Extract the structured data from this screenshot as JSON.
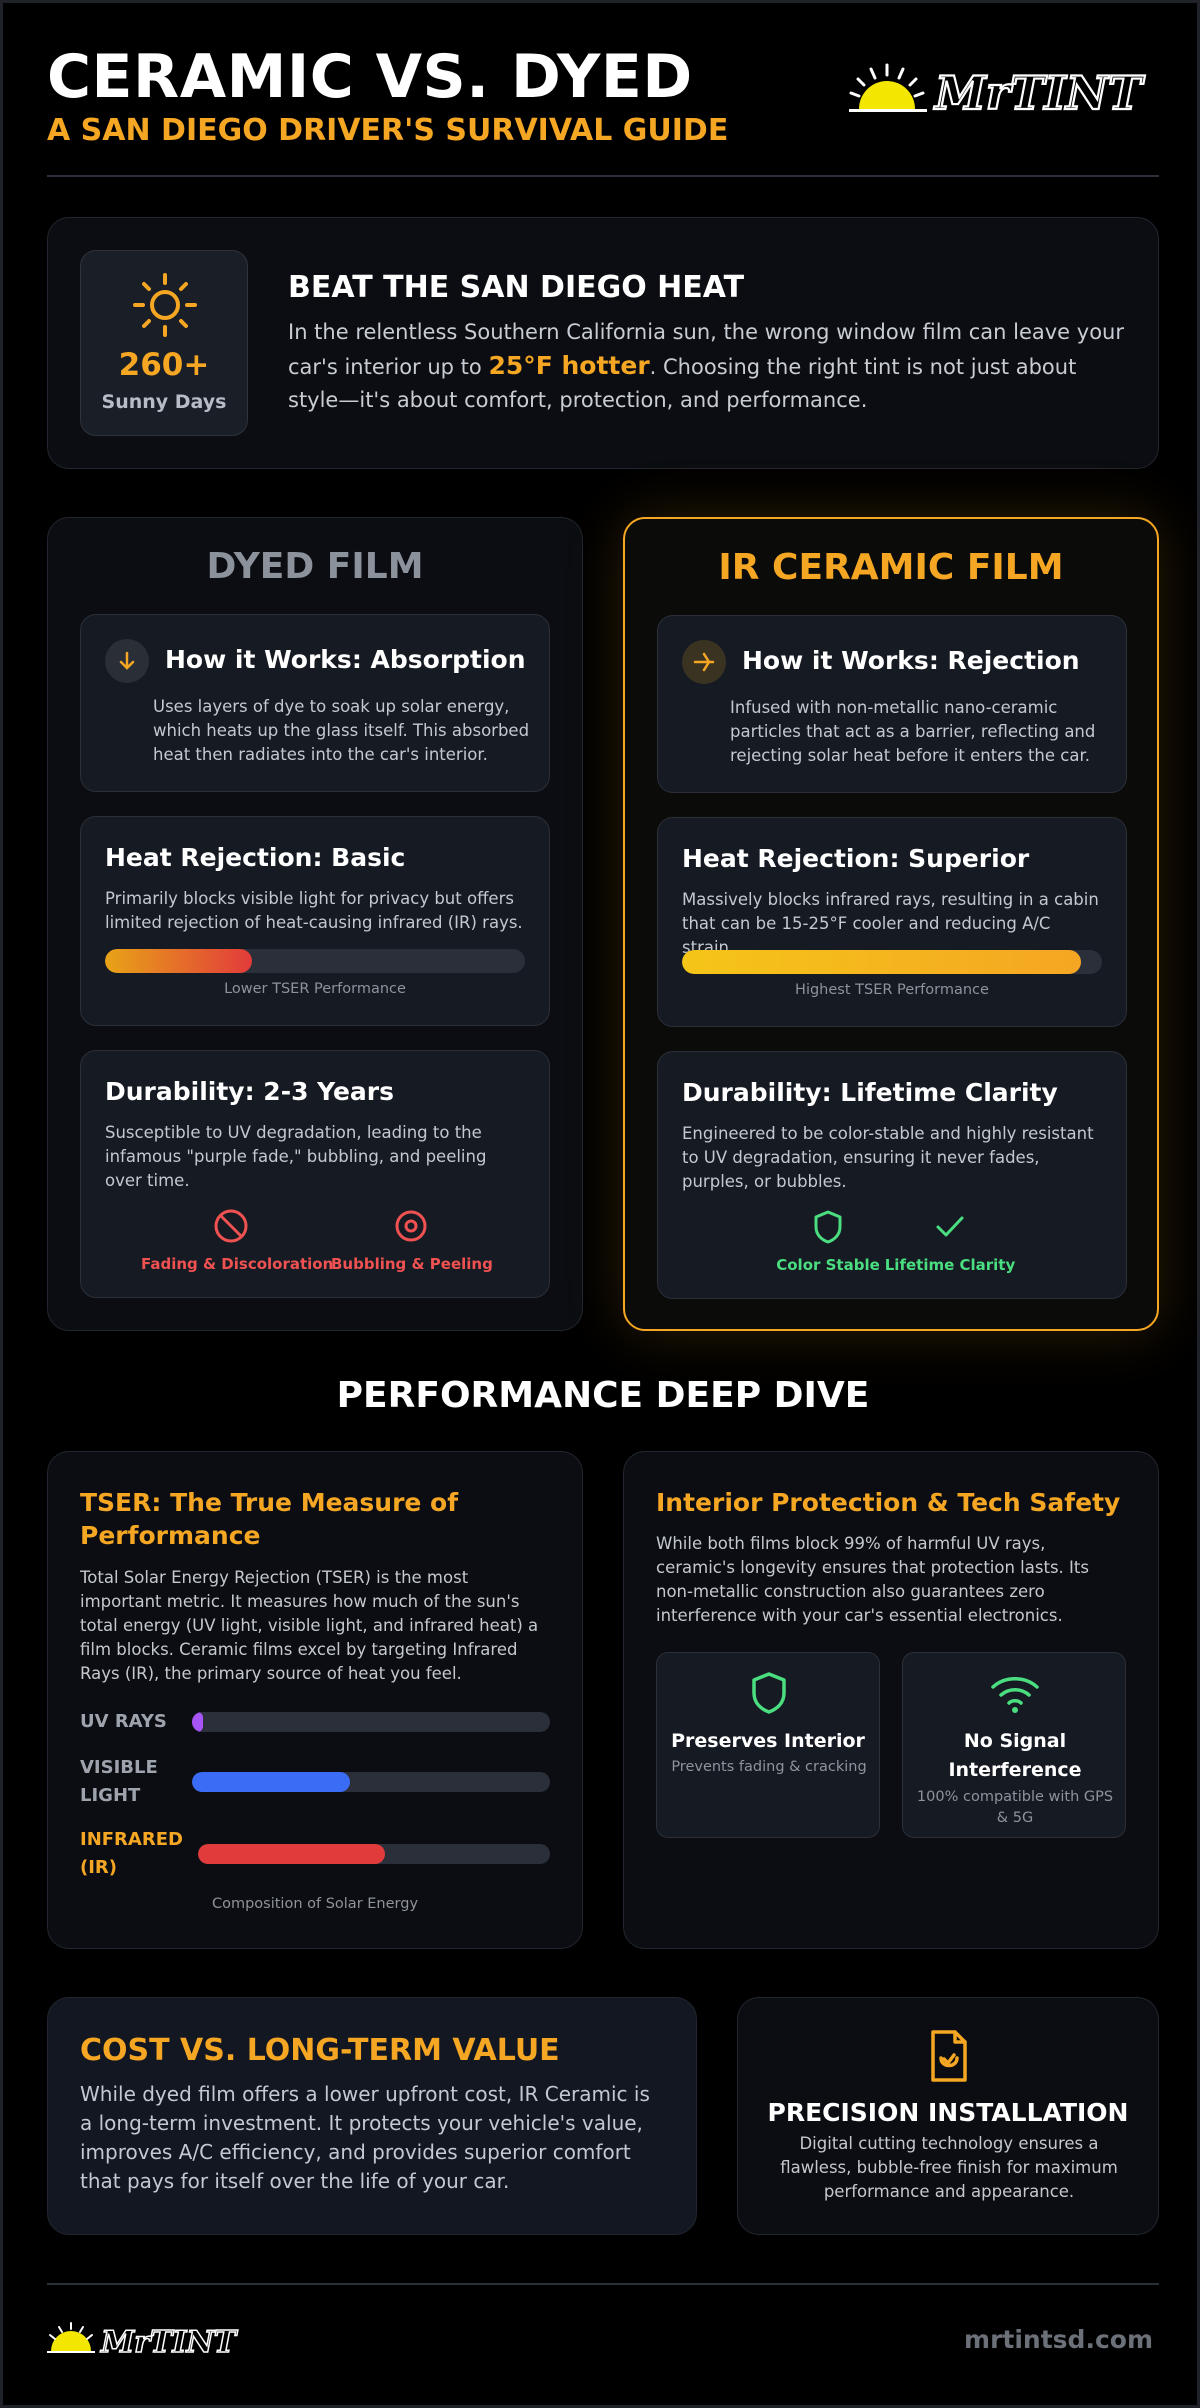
{
  "header": {
    "title": "CERAMIC VS. DYED",
    "subtitle": "A SAN DIEGO DRIVER'S SURVIVAL GUIDE",
    "logo_text": "MrTINT"
  },
  "intro": {
    "stat_value": "260+",
    "stat_label": "Sunny Days",
    "heading": "BEAT THE SAN DIEGO HEAT",
    "text_before": "In the relentless Southern California sun, the wrong window film can leave your car's interior up to ",
    "text_highlight": "25°F hotter",
    "text_after": ". Choosing the right tint is not just about style—it's about comfort, protection, and performance."
  },
  "dyed": {
    "title": "DYED FILM",
    "how_title": "How it Works: Absorption",
    "how_text": "Uses layers of dye to soak up solar energy, which heats up the glass itself. This absorbed heat then radiates into the car's interior.",
    "heat_title": "Heat Rejection: Basic",
    "heat_text": "Primarily blocks visible light for privacy but offers limited rejection of heat-causing infrared (IR) rays.",
    "heat_level": 0.35,
    "heat_caption": "Lower TSER Performance",
    "dur_title": "Durability: 2-3 Years",
    "dur_text": "Susceptible to UV degradation, leading to the infamous \"purple fade,\" bubbling, and peeling over time.",
    "badge1": "Fading & Discoloration",
    "badge2": "Bubbling & Peeling",
    "badge_color": "#f05252"
  },
  "ceramic": {
    "title": "IR CERAMIC FILM",
    "how_title": "How it Works: Rejection",
    "how_text": "Infused with non-metallic nano-ceramic particles that act as a barrier, reflecting and rejecting solar heat before it enters the car.",
    "heat_title": "Heat Rejection: Superior",
    "heat_text": "Massively blocks infrared rays, resulting in a cabin that can be 15-25°F cooler and reducing A/C strain.",
    "heat_level": 0.95,
    "heat_caption": "Highest TSER Performance",
    "dur_title": "Durability: Lifetime Clarity",
    "dur_text": "Engineered to be color-stable and highly resistant to UV degradation, ensuring it never fades, purples, or bubbles.",
    "badge1": "Color Stable",
    "badge2": "Lifetime Clarity",
    "badge_color": "#4ade80",
    "accent": "#f5a623"
  },
  "deep_dive": {
    "title": "PERFORMANCE DEEP DIVE",
    "tser": {
      "heading": "TSER: The True Measure of Performance",
      "text": "Total Solar Energy Rejection (TSER) is the most important metric. It measures how much of the sun's total energy (UV light, visible light, and infrared heat) a film blocks. Ceramic films excel by targeting Infrared Rays (IR), the primary source of heat you feel.",
      "rows": [
        {
          "label": "UV RAYS",
          "level": 0.03,
          "color": "#a855f7"
        },
        {
          "label": "VISIBLE LIGHT",
          "level": 0.44,
          "color": "#3b6cf6"
        },
        {
          "label": "INFRARED (IR)",
          "level": 0.53,
          "color": "#e23b3b"
        }
      ],
      "caption": "Composition of Solar Energy"
    },
    "interior": {
      "heading": "Interior Protection & Tech Safety",
      "text": "While both films block 99% of harmful UV rays, ceramic's longevity ensures that protection lasts. Its non-metallic construction also guarantees zero interference with your car's essential electronics.",
      "feature1_title": "Preserves Interior",
      "feature1_sub": "Prevents fading & cracking",
      "feature2_title": "No Signal Interference",
      "feature2_sub": "100% compatible with GPS & 5G"
    }
  },
  "cost": {
    "heading": "COST VS. LONG-TERM VALUE",
    "text": "While dyed film offers a lower upfront cost, IR Ceramic is a long-term investment. It protects your vehicle's value, improves A/C efficiency, and provides superior comfort that pays for itself over the life of your car."
  },
  "install": {
    "heading": "PRECISION INSTALLATION",
    "text": "Digital cutting technology ensures a flawless, bubble-free finish for maximum performance and appearance."
  },
  "footer": {
    "logo_text": "MrTINT",
    "url": "mrtintsd.com"
  }
}
